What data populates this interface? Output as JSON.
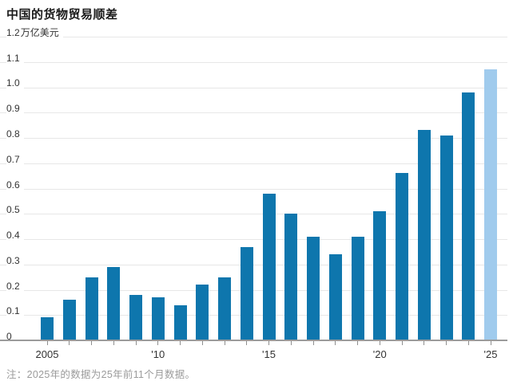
{
  "title": "中国的货物贸易顺差",
  "note": "注：2025年的数据为25年前11个月数据。",
  "chart_data": {
    "type": "bar",
    "title": "中国的货物贸易顺差",
    "unit": "万亿美元",
    "ylabel": "",
    "xlabel": "",
    "ylim": [
      0,
      1.2
    ],
    "grid": "horizontal",
    "categories": [
      2005,
      2006,
      2007,
      2008,
      2009,
      2010,
      2011,
      2012,
      2013,
      2014,
      2015,
      2016,
      2017,
      2018,
      2019,
      2020,
      2021,
      2022,
      2023,
      2024,
      2025
    ],
    "values": [
      0.09,
      0.16,
      0.25,
      0.29,
      0.18,
      0.17,
      0.14,
      0.22,
      0.25,
      0.37,
      0.58,
      0.5,
      0.41,
      0.34,
      0.41,
      0.51,
      0.66,
      0.83,
      0.81,
      0.98,
      1.07
    ],
    "y_ticks": [
      "1.2",
      "1.1",
      "1.0",
      "0.9",
      "0.8",
      "0.7",
      "0.6",
      "0.5",
      "0.4",
      "0.3",
      "0.2",
      "0.1",
      "0"
    ],
    "x_tick_labels": [
      {
        "index": 0,
        "label": "2005"
      },
      {
        "index": 5,
        "label": "'10"
      },
      {
        "index": 10,
        "label": "'15"
      },
      {
        "index": 15,
        "label": "'20"
      },
      {
        "index": 20,
        "label": "'25"
      }
    ],
    "highlight_last": true,
    "colors": {
      "bar": "#0e76ad",
      "highlight": "#a0cbed",
      "gridline": "#e7e7e7",
      "axis": "#9b9b9b"
    }
  }
}
